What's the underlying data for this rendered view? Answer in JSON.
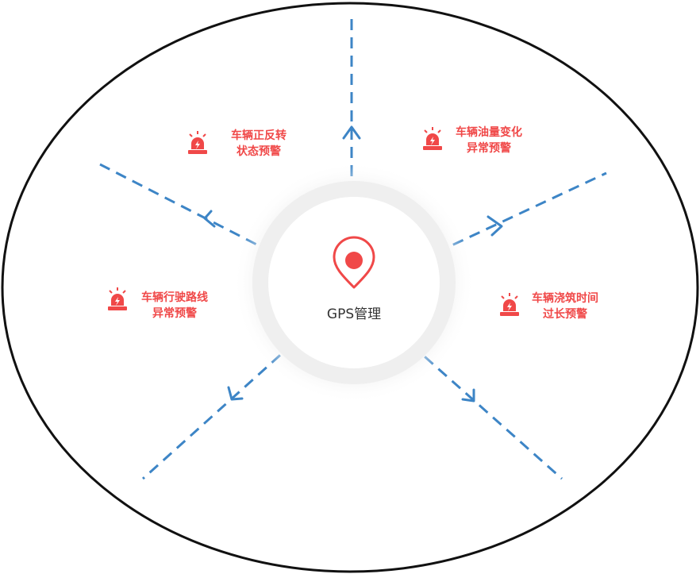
{
  "center": {
    "label": "GPS管理",
    "icon": "location-pin-icon"
  },
  "alerts": [
    {
      "icon": "alarm-siren-icon",
      "line1": "车辆正反转",
      "line2": "状态预警"
    },
    {
      "icon": "alarm-siren-icon",
      "line1": "车辆油量变化",
      "line2": "异常预警"
    },
    {
      "icon": "alarm-siren-icon",
      "line1": "车辆行驶路线",
      "line2": "异常预警"
    },
    {
      "icon": "alarm-siren-icon",
      "line1": "车辆浇筑时间",
      "line2": "过长预警"
    }
  ],
  "colors": {
    "accent": "#f04848",
    "spoke": "#3d85c6",
    "outline": "#111111",
    "text_dark": "#333333",
    "halo": "#f2f2f2"
  }
}
